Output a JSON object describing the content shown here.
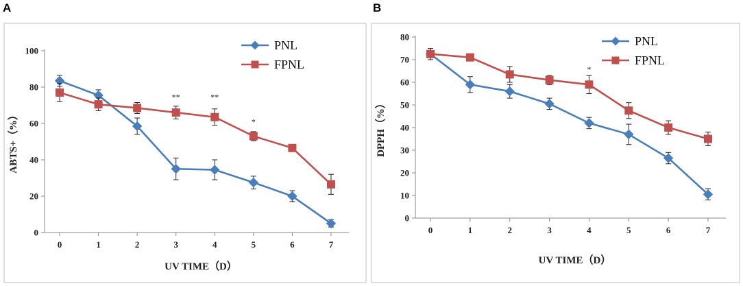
{
  "chart_data": [
    {
      "panel": "A",
      "type": "line",
      "title": "",
      "xlabel": "UV TIME（D）",
      "ylabel": "ABTS+（%）",
      "x": [
        0,
        1,
        2,
        3,
        4,
        5,
        6,
        7
      ],
      "xticks": [
        "0",
        "1",
        "2",
        "3",
        "4",
        "5",
        "6",
        "7"
      ],
      "ylim": [
        0,
        100
      ],
      "yticks": [
        "0",
        "20",
        "40",
        "60",
        "80",
        "100"
      ],
      "grid": false,
      "legend_position": "top-right",
      "series": [
        {
          "name": "PNL",
          "color": "#4a7ebb",
          "marker": "diamond",
          "values": [
            83.5,
            75.5,
            58.5,
            35,
            34.5,
            27.5,
            20,
            5
          ],
          "errors": [
            3,
            3,
            4.5,
            6,
            5.5,
            3.5,
            3,
            2
          ]
        },
        {
          "name": "FPNL",
          "color": "#c0504d",
          "marker": "square",
          "values": [
            77,
            70.5,
            68.5,
            66,
            63.5,
            53,
            46.5,
            26.5
          ],
          "errors": [
            5,
            3.5,
            3,
            3.5,
            4.5,
            2.5,
            2,
            5.5
          ]
        }
      ],
      "annotations": [
        {
          "x": 3,
          "text": "**",
          "y": 73
        },
        {
          "x": 4,
          "text": "**",
          "y": 73
        },
        {
          "x": 5,
          "text": "*",
          "y": 59.5
        }
      ]
    },
    {
      "panel": "B",
      "type": "line",
      "title": "",
      "xlabel": "UV TIME（D）",
      "ylabel": "DPPH（%）",
      "x": [
        0,
        1,
        2,
        3,
        4,
        5,
        6,
        7
      ],
      "xticks": [
        "0",
        "1",
        "2",
        "3",
        "4",
        "5",
        "6",
        "7"
      ],
      "ylim": [
        0,
        80
      ],
      "yticks": [
        "0",
        "10",
        "20",
        "30",
        "40",
        "50",
        "60",
        "70",
        "80"
      ],
      "grid": false,
      "legend_position": "top-right",
      "series": [
        {
          "name": "PNL",
          "color": "#4a7ebb",
          "marker": "diamond",
          "values": [
            72.5,
            59,
            56,
            50.5,
            42,
            37,
            26.5,
            10.5
          ],
          "errors": [
            2.5,
            3.5,
            3,
            2.5,
            2.5,
            4.5,
            2.5,
            2.5
          ]
        },
        {
          "name": "FPNL",
          "color": "#c0504d",
          "marker": "square",
          "values": [
            72.5,
            71,
            63.5,
            61,
            59,
            47.5,
            40,
            35
          ],
          "errors": [
            2.5,
            1.5,
            3.5,
            2,
            4,
            3.5,
            3,
            3
          ]
        }
      ],
      "annotations": [
        {
          "x": 4,
          "text": "*",
          "y": 64.5
        }
      ]
    }
  ]
}
